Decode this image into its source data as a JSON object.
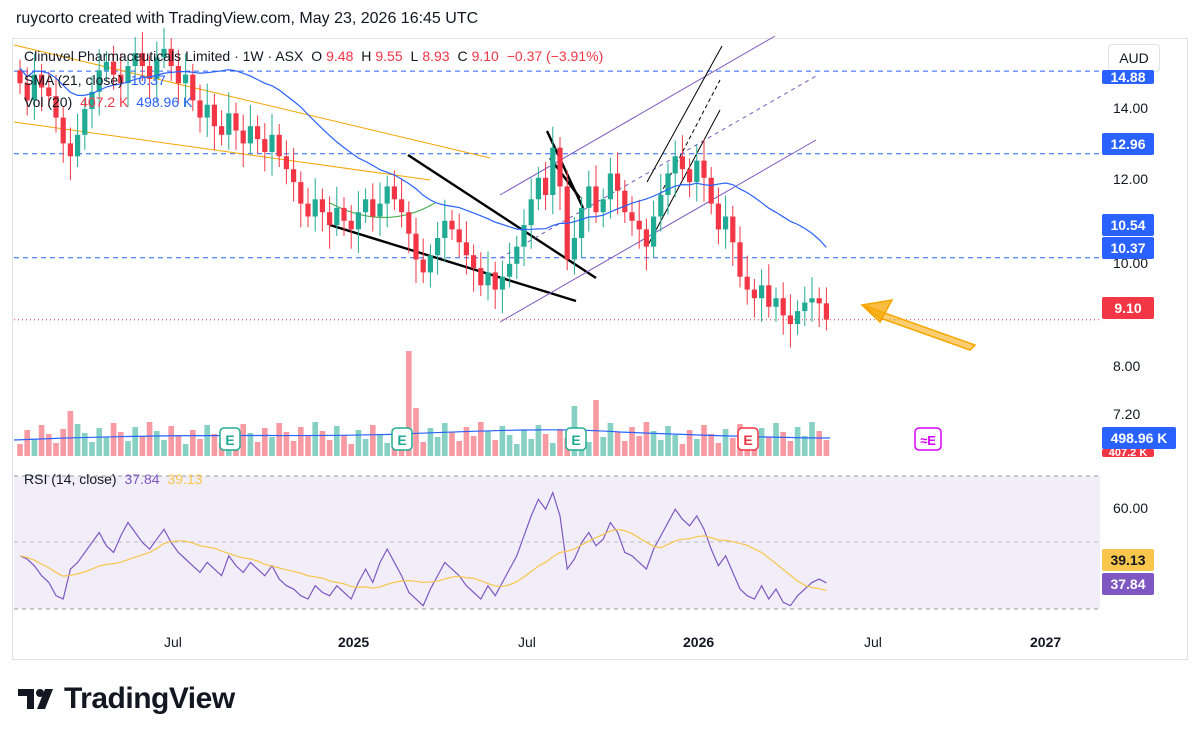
{
  "caption": "ruycorto created with TradingView.com, May 23, 2026 16:45 UTC",
  "legend": {
    "symbol": "Clinuvel Pharmaceuticals Limited · 1W · ASX",
    "o_label": "O",
    "o": "9.48",
    "h_label": "H",
    "h": "9.55",
    "l_label": "L",
    "l": "8.93",
    "c_label": "C",
    "c": "9.10",
    "change": "−0.37 (−3.91%)",
    "sma_label": "SMA (21, close)",
    "sma_value": "10.37",
    "vol_label": "Vol (20)",
    "vol_value1": "407.2 K",
    "vol_value2": "498.96 K",
    "rsi_label": "RSI (14, close)",
    "rsi_value": "37.84",
    "rsi_ma": "39.13"
  },
  "currency": "AUD",
  "price_axis": [
    "14.00",
    "12.00",
    "10.00",
    "8.00",
    "7.20"
  ],
  "price_tags": [
    {
      "value": "14.88",
      "color": "#2962ff"
    },
    {
      "value": "12.96",
      "color": "#2962ff"
    },
    {
      "value": "10.54",
      "color": "#2962ff"
    },
    {
      "value": "10.37",
      "color": "#2962ff"
    },
    {
      "value": "9.10",
      "color": "#f23645"
    },
    {
      "value": "498.96 K",
      "color": "#2962ff"
    },
    {
      "value": "407.2 K",
      "color": "#f23645"
    }
  ],
  "rsi_axis": [
    "60.00"
  ],
  "rsi_tags": [
    {
      "value": "39.13",
      "color": "#f7c64a"
    },
    {
      "value": "37.84",
      "color": "#7e57c2"
    }
  ],
  "time_axis": [
    "Jul",
    "2025",
    "Jul",
    "2026",
    "Jul",
    "2027"
  ],
  "earnings_marker": "E",
  "brand": "TradingView",
  "colors": {
    "up": "#22ab94",
    "down": "#f23645",
    "sma": "#2962ff",
    "rsi": "#7e57c2",
    "rsi_ma": "#f7c64a",
    "orange": "#f7a600"
  },
  "chart_data": {
    "type": "candlestick",
    "interval": "1W",
    "series": [
      {
        "name": "Clinuvel Pharmaceuticals Limited · 1W · ASX",
        "close": [
          14.6,
          14.2,
          14.8,
          14.5,
          14.3,
          13.8,
          13.2,
          12.9,
          13.4,
          14.0,
          14.4,
          14.9,
          15.1,
          14.8,
          14.6,
          15.0,
          15.3,
          15.0,
          14.7,
          15.2,
          15.4,
          15.0,
          14.6,
          14.8,
          14.2,
          13.8,
          14.1,
          13.6,
          13.4,
          13.9,
          13.5,
          13.2,
          13.6,
          13.3,
          13.0,
          13.4,
          12.9,
          12.6,
          12.3,
          11.8,
          11.5,
          11.9,
          11.6,
          11.3,
          11.7,
          11.4,
          11.2,
          11.6,
          11.9,
          11.5,
          11.8,
          12.2,
          11.9,
          11.6,
          11.1,
          10.5,
          10.2,
          10.6,
          11.0,
          11.4,
          11.2,
          10.9,
          10.6,
          10.3,
          9.9,
          10.2,
          9.8,
          10.1,
          10.4,
          10.8,
          11.3,
          11.9,
          12.4,
          12.0,
          13.1,
          12.2,
          10.5,
          11.0,
          11.7,
          12.2,
          11.6,
          11.9,
          12.5,
          12.1,
          11.6,
          11.4,
          11.2,
          10.8,
          11.5,
          12.0,
          12.5,
          12.9,
          12.6,
          12.3,
          12.8,
          12.4,
          11.8,
          11.2,
          11.5,
          10.9,
          10.1,
          9.8,
          9.6,
          9.9,
          9.4,
          9.6,
          9.2,
          9.0,
          9.3,
          9.5,
          9.6,
          9.48,
          9.1
        ]
      },
      {
        "name": "SMA (21, close)",
        "last": 10.37
      },
      {
        "name": "Vol (20)",
        "last": 498.96
      },
      {
        "name": "RSI (14, close)",
        "last": 37.84,
        "ma": 39.13
      }
    ],
    "horizontal_levels": [
      14.88,
      12.96,
      10.54,
      9.1
    ],
    "rsi": [
      46,
      45,
      43,
      40,
      38,
      34,
      33,
      42,
      44,
      47,
      50,
      53,
      49,
      47,
      52,
      56,
      53,
      50,
      48,
      51,
      54,
      50,
      47,
      45,
      43,
      41,
      44,
      42,
      40,
      46,
      43,
      41,
      44,
      42,
      40,
      43,
      39,
      37,
      36,
      34,
      33,
      37,
      35,
      34,
      37,
      35,
      33,
      38,
      42,
      38,
      44,
      48,
      44,
      40,
      35,
      33,
      31,
      36,
      40,
      44,
      42,
      40,
      37,
      35,
      33,
      37,
      34,
      38,
      42,
      46,
      52,
      58,
      63,
      60,
      65,
      58,
      42,
      45,
      50,
      53,
      49,
      51,
      56,
      53,
      47,
      46,
      44,
      42,
      48,
      52,
      56,
      60,
      57,
      55,
      58,
      54,
      48,
      43,
      46,
      41,
      36,
      34,
      33,
      37,
      33,
      36,
      32,
      31,
      34,
      36,
      38,
      39,
      37.84
    ],
    "xlabel": "",
    "ylabel": ""
  }
}
